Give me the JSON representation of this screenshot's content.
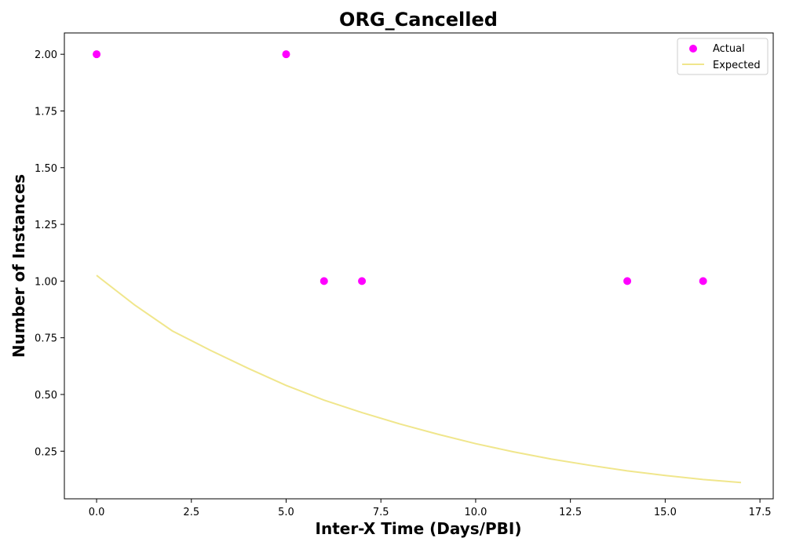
{
  "chart_data": {
    "type": "scatter",
    "title": "ORG_Cancelled",
    "xlabel": "Inter-X Time (Days/PBI)",
    "ylabel": "Number of Instances",
    "xlim": [
      -0.85,
      17.85
    ],
    "ylim": [
      0.04,
      2.094
    ],
    "x_ticks": [
      0.0,
      2.5,
      5.0,
      7.5,
      10.0,
      12.5,
      15.0,
      17.5
    ],
    "x_tick_labels": [
      "0.0",
      "2.5",
      "5.0",
      "7.5",
      "10.0",
      "12.5",
      "15.0",
      "17.5"
    ],
    "y_ticks": [
      0.25,
      0.5,
      0.75,
      1.0,
      1.25,
      1.5,
      1.75,
      2.0
    ],
    "y_tick_labels": [
      "0.25",
      "0.50",
      "0.75",
      "1.00",
      "1.25",
      "1.50",
      "1.75",
      "2.00"
    ],
    "grid": false,
    "legend_position": "top-right",
    "series": [
      {
        "name": "Actual",
        "kind": "scatter",
        "color": "#ff00ff",
        "x": [
          0,
          5,
          6,
          7,
          14,
          16
        ],
        "y": [
          2,
          2,
          1,
          1,
          1,
          1
        ]
      },
      {
        "name": "Expected",
        "kind": "line",
        "color": "#f0e68c",
        "x": [
          0,
          1,
          2,
          3,
          4,
          5,
          6,
          7,
          8,
          9,
          10,
          11,
          12,
          13,
          14,
          15,
          16,
          17
        ],
        "y": [
          1.025,
          0.895,
          0.78,
          0.695,
          0.615,
          0.54,
          0.475,
          0.42,
          0.37,
          0.325,
          0.283,
          0.247,
          0.215,
          0.188,
          0.163,
          0.143,
          0.125,
          0.112
        ]
      }
    ]
  }
}
